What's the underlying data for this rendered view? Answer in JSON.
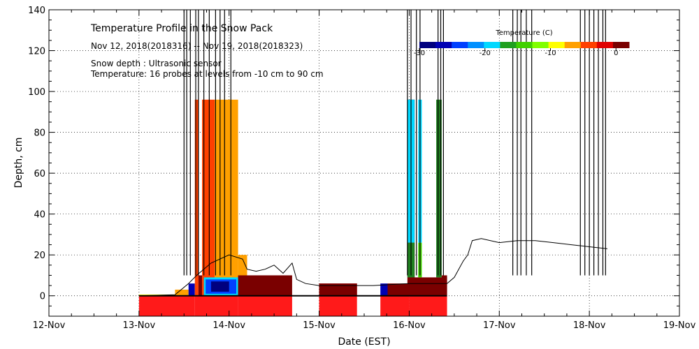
{
  "chart_data": {
    "type": "heatmap",
    "title": "Temperature Profile in the Snow Pack",
    "subtitle": "Nov 12, 2018(2018316) -- Nov 19, 2018(2018323)",
    "annotations": [
      "Snow depth : Ultrasonic sensor",
      "Temperature: 16 probes at levels from -10 cm to 90 cm"
    ],
    "xlabel": "Date (EST)",
    "ylabel": "Depth, cm",
    "x_ticks": [
      "12-Nov",
      "13-Nov",
      "14-Nov",
      "15-Nov",
      "16-Nov",
      "17-Nov",
      "18-Nov",
      "19-Nov"
    ],
    "xlim": [
      0,
      7
    ],
    "ylim": [
      -10,
      140
    ],
    "y_ticks": [
      0,
      20,
      40,
      60,
      80,
      100,
      120,
      140
    ],
    "grid": true,
    "colorbar": {
      "title": "Temperature (C)",
      "range": [
        -30,
        2
      ],
      "tick_values": [
        -30,
        -20,
        -10,
        0
      ],
      "tick_labels": [
        "-30",
        "-20",
        "-10",
        "0"
      ],
      "colors": [
        "#00007f",
        "#0000b4",
        "#0040ff",
        "#0090ff",
        "#00d8ff",
        "#20a020",
        "#40d000",
        "#80ff00",
        "#ffff00",
        "#ffa000",
        "#ff4000",
        "#e00000",
        "#7a0000"
      ]
    },
    "temperature_blocks": [
      {
        "x0": 1.0,
        "x1": 1.62,
        "y0": -10,
        "y1": 0,
        "color": "#ff1a1a"
      },
      {
        "x0": 1.0,
        "x1": 1.4,
        "y0": 0,
        "y1": 0.6,
        "color": "#ffff00"
      },
      {
        "x0": 1.4,
        "x1": 1.55,
        "y0": 0,
        "y1": 3,
        "color": "#ffa000"
      },
      {
        "x0": 1.55,
        "x1": 1.62,
        "y0": 0,
        "y1": 6,
        "color": "#0000b4"
      },
      {
        "x0": 1.62,
        "x1": 2.1,
        "y0": -10,
        "y1": 0,
        "color": "#ff1a1a"
      },
      {
        "x0": 1.62,
        "x1": 1.66,
        "y0": 0,
        "y1": 96,
        "color": "#ff4000"
      },
      {
        "x0": 1.66,
        "x1": 1.7,
        "y0": 0,
        "y1": 10,
        "color": "#7a0000"
      },
      {
        "x0": 1.7,
        "x1": 1.84,
        "y0": 0,
        "y1": 96,
        "color": "#ff4000"
      },
      {
        "x0": 1.84,
        "x1": 2.1,
        "y0": 0,
        "y1": 96,
        "color": "#ffa000"
      },
      {
        "x0": 2.1,
        "x1": 2.2,
        "y0": 0,
        "y1": 20,
        "color": "#ffa000"
      },
      {
        "x0": 1.7,
        "x1": 2.1,
        "y0": 0,
        "y1": 6,
        "color": "#ff4000"
      },
      {
        "x0": 1.72,
        "x1": 2.1,
        "y0": 0,
        "y1": 9,
        "color": "#00d8ff"
      },
      {
        "x0": 1.74,
        "x1": 2.08,
        "y0": 1,
        "y1": 8,
        "color": "#0040ff"
      },
      {
        "x0": 1.8,
        "x1": 2.0,
        "y0": 2,
        "y1": 7,
        "color": "#00007f"
      },
      {
        "x0": 2.1,
        "x1": 2.7,
        "y0": -10,
        "y1": 0,
        "color": "#ff1a1a"
      },
      {
        "x0": 2.1,
        "x1": 2.7,
        "y0": 0,
        "y1": 10,
        "color": "#7a0000"
      },
      {
        "x0": 3.0,
        "x1": 3.42,
        "y0": -10,
        "y1": 6,
        "color": "#ff1a1a"
      },
      {
        "x0": 3.0,
        "x1": 3.42,
        "y0": 0,
        "y1": 6,
        "color": "#7a0000"
      },
      {
        "x0": 3.68,
        "x1": 4.0,
        "y0": -10,
        "y1": 0,
        "color": "#ff1a1a"
      },
      {
        "x0": 3.68,
        "x1": 3.76,
        "y0": 0,
        "y1": 6,
        "color": "#0000b4"
      },
      {
        "x0": 3.76,
        "x1": 4.0,
        "y0": 0,
        "y1": 6,
        "color": "#7a0000"
      },
      {
        "x0": 4.0,
        "x1": 4.42,
        "y0": -10,
        "y1": 0,
        "color": "#ff1a1a"
      },
      {
        "x0": 4.0,
        "x1": 4.42,
        "y0": 0,
        "y1": 9,
        "color": "#7a0000"
      },
      {
        "x0": 3.98,
        "x1": 4.06,
        "y0": 0,
        "y1": 96,
        "color": "#7a0000"
      },
      {
        "x0": 3.98,
        "x1": 4.06,
        "y0": 9,
        "y1": 26,
        "color": "#208020"
      },
      {
        "x0": 3.98,
        "x1": 4.06,
        "y0": 26,
        "y1": 96,
        "color": "#00d8ff"
      },
      {
        "x0": 4.1,
        "x1": 4.14,
        "y0": 9,
        "y1": 26,
        "color": "#40d000"
      },
      {
        "x0": 4.1,
        "x1": 4.14,
        "y0": 26,
        "y1": 96,
        "color": "#00d8ff"
      },
      {
        "x0": 4.3,
        "x1": 4.36,
        "y0": 9,
        "y1": 96,
        "color": "#208020"
      },
      {
        "x0": 4.36,
        "x1": 4.42,
        "y0": 0,
        "y1": 10,
        "color": "#7a0000"
      }
    ],
    "snow_depth_trace": [
      [
        1.0,
        0
      ],
      [
        1.4,
        0.5
      ],
      [
        1.55,
        6
      ],
      [
        1.64,
        10
      ],
      [
        1.8,
        16
      ],
      [
        2.0,
        20
      ],
      [
        2.15,
        18
      ],
      [
        2.2,
        13
      ],
      [
        2.3,
        12
      ],
      [
        2.4,
        13
      ],
      [
        2.5,
        15
      ],
      [
        2.6,
        11
      ],
      [
        2.7,
        16
      ],
      [
        2.75,
        8
      ],
      [
        2.85,
        6
      ],
      [
        3.0,
        5
      ],
      [
        3.2,
        5
      ],
      [
        3.42,
        5
      ],
      [
        3.6,
        5
      ],
      [
        3.8,
        5.5
      ],
      [
        4.0,
        6
      ],
      [
        4.2,
        6
      ],
      [
        4.42,
        6
      ],
      [
        4.5,
        9
      ],
      [
        4.6,
        17
      ],
      [
        4.65,
        20
      ],
      [
        4.7,
        27
      ],
      [
        4.8,
        28
      ],
      [
        5.0,
        26
      ],
      [
        5.2,
        27
      ],
      [
        5.4,
        27
      ],
      [
        5.6,
        26
      ],
      [
        5.8,
        25
      ],
      [
        6.0,
        24
      ],
      [
        6.2,
        23
      ]
    ],
    "sensor_spikes": [
      1.5,
      1.53,
      1.57,
      1.63,
      1.66,
      1.72,
      1.78,
      1.85,
      1.9,
      1.95,
      2.02,
      3.98,
      4.02,
      4.08,
      4.12,
      4.32,
      4.35,
      4.38,
      5.15,
      5.2,
      5.24,
      5.3,
      5.36,
      5.9,
      5.95,
      6.0,
      6.05,
      6.1,
      6.15,
      6.18
    ],
    "zero_line": {
      "x0": 1.0,
      "x1": 4.42,
      "y": 0
    }
  }
}
